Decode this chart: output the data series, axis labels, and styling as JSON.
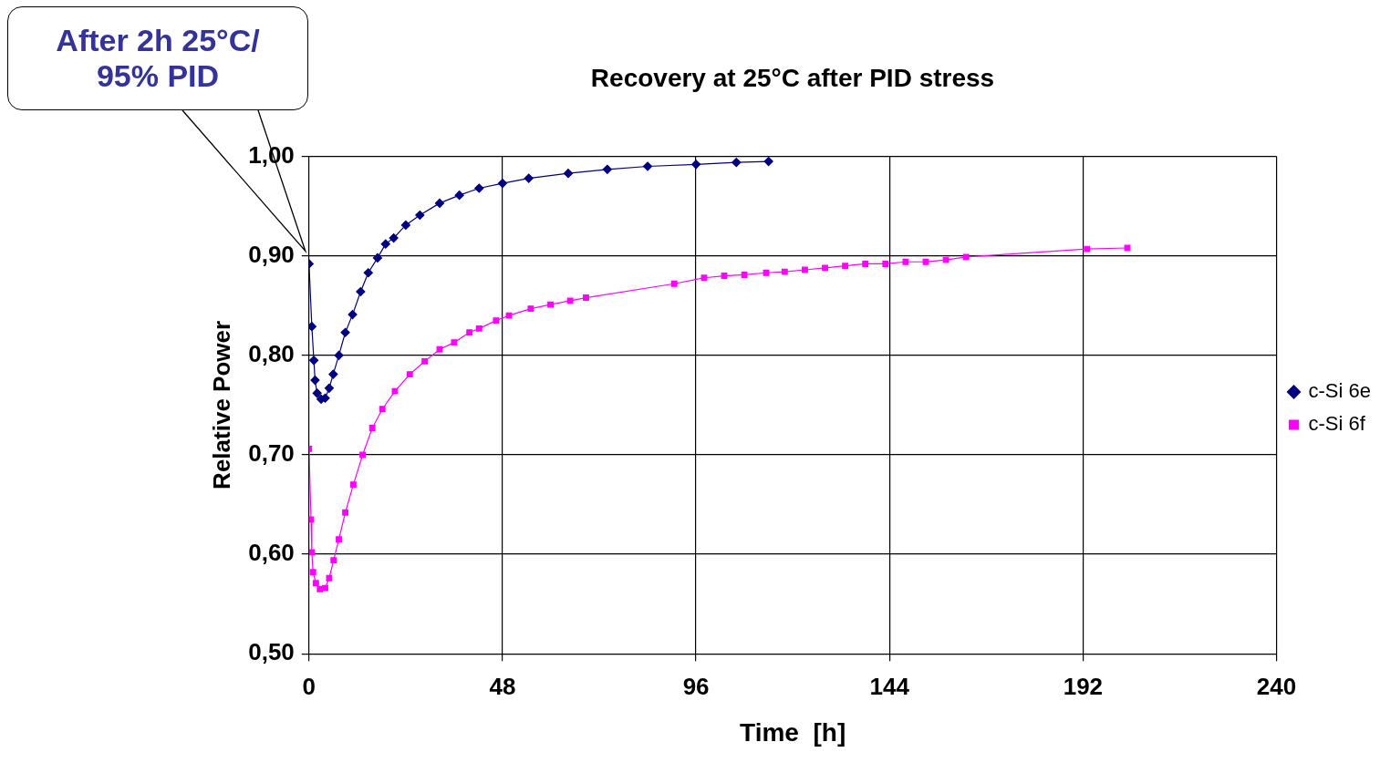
{
  "chart_data": {
    "type": "line",
    "title": "Recovery at 25°C after PID stress",
    "xlabel": "Time  [h]",
    "ylabel": "Relative Power",
    "xlim": [
      0,
      240
    ],
    "xticks": [
      0,
      48,
      96,
      144,
      192,
      240
    ],
    "ylim": [
      0.5,
      1.0
    ],
    "yticks": [
      {
        "value": 0.5,
        "label": "0,50"
      },
      {
        "value": 0.6,
        "label": "0,60"
      },
      {
        "value": 0.7,
        "label": "0,70"
      },
      {
        "value": 0.8,
        "label": "0,80"
      },
      {
        "value": 0.9,
        "label": "0,90"
      },
      {
        "value": 1.0,
        "label": "1,00"
      }
    ],
    "grid": true,
    "legend": "right",
    "annotations": [
      "After 2h  25°C/ 95% PID"
    ],
    "series": [
      {
        "name": "c-Si 6e",
        "color": "#000080",
        "marker": "diamond",
        "x": [
          0,
          0.7,
          1.2,
          1.5,
          2,
          3,
          4,
          5,
          6,
          7.4,
          9,
          10.8,
          12.8,
          14.7,
          17,
          19,
          21,
          24,
          27.5,
          32.4,
          37.3,
          42.2,
          48,
          54.5,
          64.3,
          74,
          84,
          96,
          106,
          114
        ],
        "values": [
          0.892,
          0.829,
          0.795,
          0.775,
          0.762,
          0.756,
          0.757,
          0.767,
          0.781,
          0.8,
          0.823,
          0.841,
          0.864,
          0.883,
          0.898,
          0.912,
          0.918,
          0.931,
          0.941,
          0.953,
          0.961,
          0.968,
          0.973,
          0.978,
          0.983,
          0.987,
          0.99,
          0.992,
          0.994,
          0.995
        ]
      },
      {
        "name": "c-Si 6f",
        "color": "#ff00ff",
        "marker": "square",
        "x": [
          0,
          0.5,
          0.7,
          1,
          1.7,
          2.7,
          4,
          5,
          6.1,
          7.4,
          9,
          11,
          13.3,
          15.7,
          18.2,
          21.3,
          25,
          28.7,
          32.4,
          36,
          39.8,
          42.2,
          46.4,
          49.6,
          55,
          59.9,
          64.8,
          68.7,
          90.6,
          98,
          103,
          108,
          113.4,
          118,
          123,
          128,
          133,
          138,
          143,
          148,
          153,
          158,
          163,
          193,
          203
        ],
        "values": [
          0.706,
          0.635,
          0.602,
          0.582,
          0.571,
          0.565,
          0.566,
          0.576,
          0.594,
          0.615,
          0.642,
          0.67,
          0.7,
          0.727,
          0.746,
          0.764,
          0.781,
          0.794,
          0.806,
          0.813,
          0.823,
          0.827,
          0.835,
          0.84,
          0.847,
          0.851,
          0.855,
          0.858,
          0.872,
          0.878,
          0.88,
          0.881,
          0.883,
          0.884,
          0.886,
          0.888,
          0.89,
          0.892,
          0.892,
          0.894,
          0.894,
          0.896,
          0.899,
          0.907,
          0.908
        ]
      }
    ]
  }
}
